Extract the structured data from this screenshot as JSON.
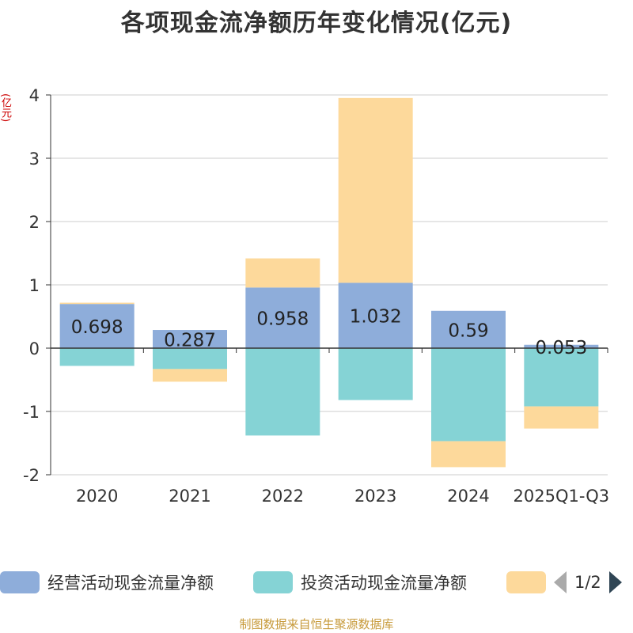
{
  "title": "各项现金流净额历年变化情况(亿元)",
  "unit": "(亿元)",
  "source": "制图数据来自恒生聚源数据库",
  "legend": {
    "items": [
      {
        "label": "经营活动现金流量净额",
        "color": "#8eadda"
      },
      {
        "label": "投资活动现金流量净额",
        "color": "#85d3d5"
      },
      {
        "label": "",
        "color": "#fdd99b"
      }
    ],
    "page_indicator": "1/2"
  },
  "chart_data": {
    "type": "bar",
    "stacked": true,
    "title": "各项现金流净额历年变化情况(亿元)",
    "ylabel": "(亿元)",
    "categories": [
      "2020",
      "2021",
      "2022",
      "2023",
      "2024",
      "2025Q1-Q3"
    ],
    "ylim": [
      -2,
      4
    ],
    "yticks": [
      -2,
      -1,
      0,
      1,
      2,
      3,
      4
    ],
    "series": [
      {
        "name": "经营活动现金流量净额",
        "color": "#8eadda",
        "values": [
          0.698,
          0.287,
          0.958,
          1.032,
          0.59,
          0.053
        ],
        "labels": [
          "0.698",
          "0.287",
          "0.958",
          "1.032",
          "0.59",
          "0.053"
        ]
      },
      {
        "name": "投资活动现金流量净额",
        "color": "#85d3d5",
        "values": [
          -0.28,
          -0.33,
          -1.38,
          -0.82,
          -1.47,
          -0.92
        ]
      },
      {
        "name": "",
        "color": "#fdd99b",
        "values": [
          0.02,
          -0.2,
          0.46,
          2.92,
          -0.41,
          -0.35
        ]
      }
    ]
  }
}
